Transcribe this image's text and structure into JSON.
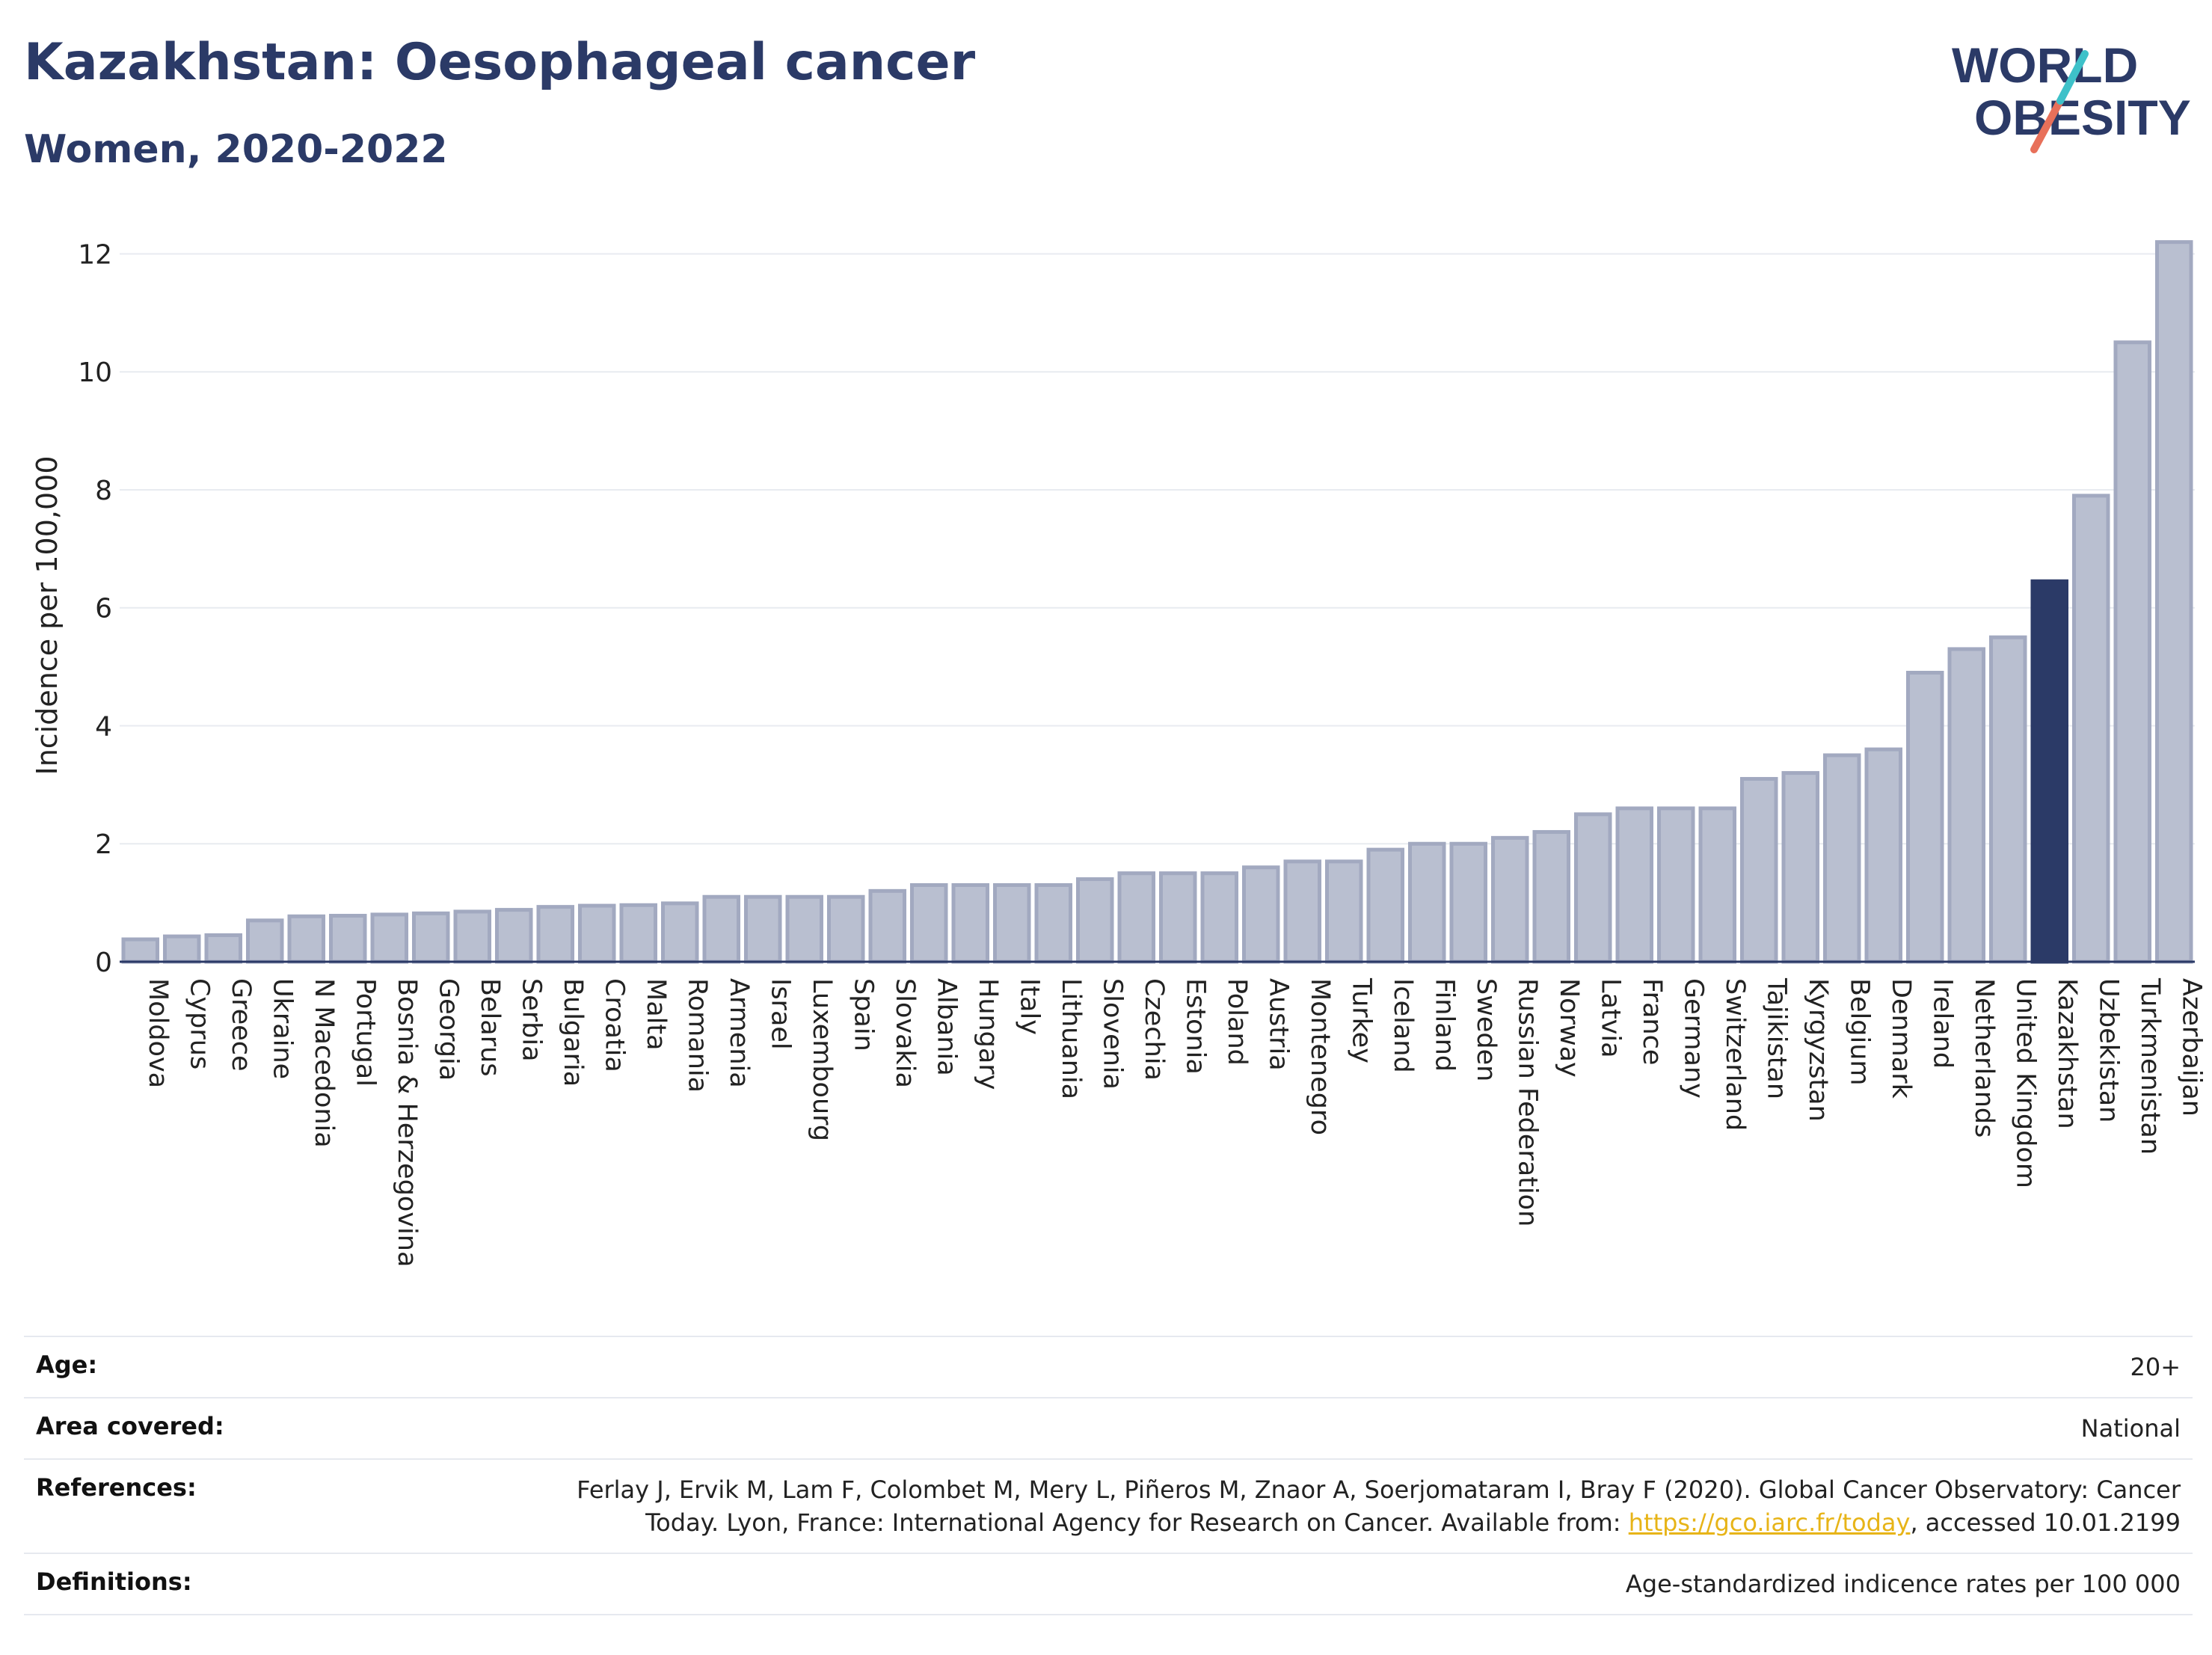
{
  "header": {
    "title": "Kazakhstan: Oesophageal cancer",
    "subtitle": "Women, 2020-2022"
  },
  "logo": {
    "line1": "WORLD",
    "line2": "OBESITY"
  },
  "colors": {
    "bar_fill": "#b9bfd0",
    "bar_stroke": "#a2a9c0",
    "highlight": "#2b3a67",
    "title": "#2b3a67",
    "link": "#e7b418",
    "logo_teal": "#3ec1c9",
    "logo_coral": "#e8705a"
  },
  "chart_data": {
    "type": "bar",
    "ylabel": "Incidence per 100,000",
    "ylim": [
      0,
      12.5
    ],
    "yticks": [
      0,
      2,
      4,
      6,
      8,
      10,
      12
    ],
    "grid": true,
    "highlight": "Kazakhstan",
    "categories": [
      "Moldova",
      "Cyprus",
      "Greece",
      "Ukraine",
      "N Macedonia",
      "Portugal",
      "Bosnia & Herzegovina",
      "Georgia",
      "Belarus",
      "Serbia",
      "Bulgaria",
      "Croatia",
      "Malta",
      "Romania",
      "Armenia",
      "Israel",
      "Luxembourg",
      "Spain",
      "Slovakia",
      "Albania",
      "Hungary",
      "Italy",
      "Lithuania",
      "Slovenia",
      "Czechia",
      "Estonia",
      "Poland",
      "Austria",
      "Montenegro",
      "Turkey",
      "Iceland",
      "Finland",
      "Sweden",
      "Russian Federation",
      "Norway",
      "Latvia",
      "France",
      "Germany",
      "Switzerland",
      "Tajikistan",
      "Kyrgyzstan",
      "Belgium",
      "Denmark",
      "Ireland",
      "Netherlands",
      "United Kingdom",
      "Kazakhstan",
      "Uzbekistan",
      "Turkmenistan",
      "Azerbaijan"
    ],
    "values": [
      0.38,
      0.43,
      0.45,
      0.7,
      0.77,
      0.78,
      0.8,
      0.82,
      0.85,
      0.88,
      0.93,
      0.95,
      0.96,
      0.99,
      1.1,
      1.1,
      1.1,
      1.1,
      1.2,
      1.3,
      1.3,
      1.3,
      1.3,
      1.4,
      1.5,
      1.5,
      1.5,
      1.6,
      1.7,
      1.7,
      1.9,
      2.0,
      2.0,
      2.1,
      2.2,
      2.5,
      2.6,
      2.6,
      2.6,
      3.1,
      3.2,
      3.5,
      3.6,
      4.9,
      5.3,
      5.5,
      6.45,
      7.9,
      10.5,
      12.2
    ]
  },
  "meta": {
    "age_label": "Age:",
    "age_value": "20+",
    "area_label": "Area covered:",
    "area_value": "National",
    "references_label": "References:",
    "references_line1": "Ferlay J, Ervik M, Lam F, Colombet M, Mery L, Piñeros M, Znaor A, Soerjomataram I, Bray F (2020). Global Cancer Observatory: Cancer",
    "references_line2_pre": "Today. Lyon, France: International Agency for Research on Cancer. Available from: ",
    "references_link": "https://gco.iarc.fr/today",
    "references_line2_post": ", accessed 10.01.2199",
    "definitions_label": "Definitions:",
    "definitions_value": "Age-standardized indicence rates per 100 000"
  }
}
